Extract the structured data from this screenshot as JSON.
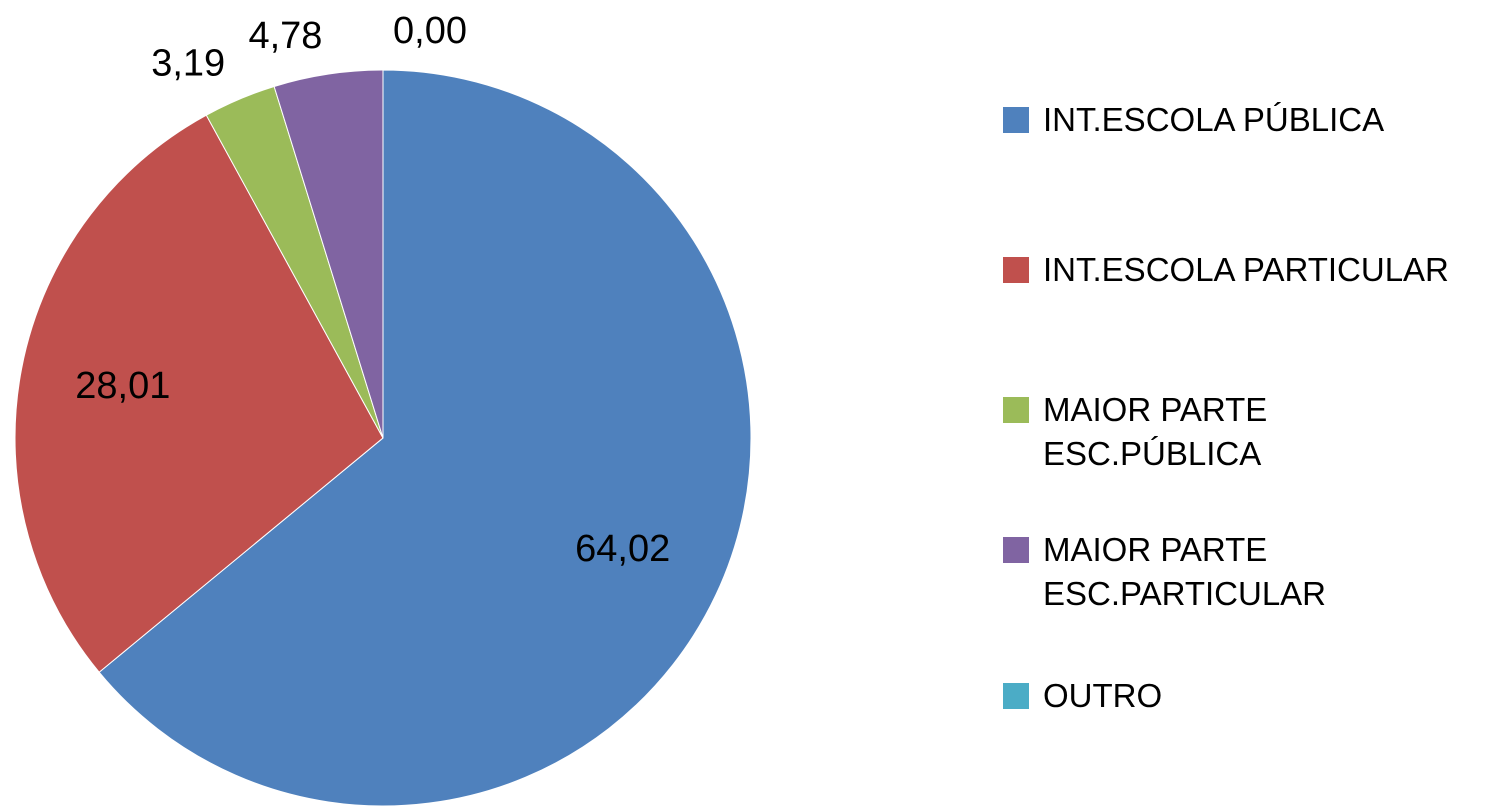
{
  "chart_data": {
    "type": "pie",
    "categories": [
      "INT.ESCOLA PÚBLICA",
      "INT.ESCOLA PARTICULAR",
      "MAIOR PARTE ESC.PÚBLICA",
      "MAIOR PARTE ESC.PARTICULAR",
      "OUTRO"
    ],
    "values": [
      64.02,
      28.01,
      3.19,
      4.78,
      0.0
    ],
    "value_labels": [
      "64,02",
      "28,01",
      "3,19",
      "4,78",
      "0,00"
    ],
    "colors": [
      "#4f81bd",
      "#c0504d",
      "#9bbb59",
      "#8064a2",
      "#4bacc6"
    ],
    "legend": "right"
  }
}
